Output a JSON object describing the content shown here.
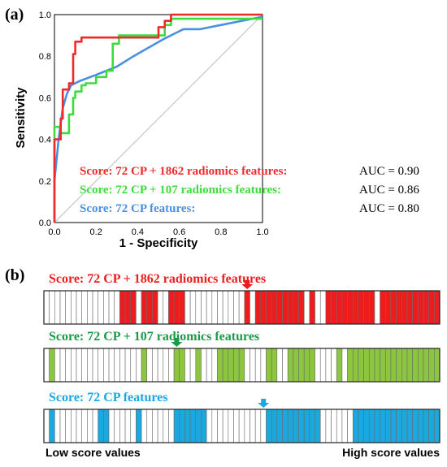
{
  "panel_a_label": "(a)",
  "panel_b_label": "(b)",
  "chart_data": [
    {
      "type": "line",
      "xlabel": "1 - Specificity",
      "ylabel": "Sensitivity",
      "xlim": [
        0,
        1
      ],
      "ylim": [
        0,
        1
      ],
      "xticks": [
        "0.0",
        "0.2",
        "0.4",
        "0.6",
        "0.8",
        "1.0"
      ],
      "yticks": [
        "0.0",
        "0.2",
        "0.4",
        "0.6",
        "0.8",
        "1.0"
      ],
      "diagonal_color": "#bfbfbf",
      "legend_placement": "bottom-right",
      "series": [
        {
          "name": "Score: 72 CP + 1862 radiomics features:",
          "auc_label": "AUC = 0.90",
          "color": "#ee2b2b",
          "x": [
            0,
            0,
            0.03,
            0.03,
            0.04,
            0.04,
            0.07,
            0.07,
            0.09,
            0.09,
            0.1,
            0.1,
            0.13,
            0.13,
            0.5,
            0.5,
            0.53,
            0.53,
            0.56,
            0.56,
            1.0
          ],
          "y": [
            0,
            0.4,
            0.4,
            0.5,
            0.5,
            0.64,
            0.64,
            0.67,
            0.67,
            0.81,
            0.81,
            0.87,
            0.87,
            0.89,
            0.89,
            0.94,
            0.94,
            0.97,
            0.97,
            1.0,
            1.0
          ]
        },
        {
          "name": "Score: 72 CP +   107 radiomics features:",
          "auc_label": "AUC = 0.86",
          "color": "#3ddc3d",
          "x": [
            0,
            0,
            0.03,
            0.03,
            0.07,
            0.07,
            0.09,
            0.09,
            0.1,
            0.1,
            0.13,
            0.13,
            0.15,
            0.15,
            0.2,
            0.2,
            0.25,
            0.25,
            0.28,
            0.28,
            0.31,
            0.31,
            0.53,
            0.53,
            0.56,
            0.56,
            1.0
          ],
          "y": [
            0,
            0.46,
            0.46,
            0.43,
            0.43,
            0.52,
            0.52,
            0.6,
            0.6,
            0.63,
            0.63,
            0.66,
            0.66,
            0.67,
            0.67,
            0.7,
            0.7,
            0.73,
            0.73,
            0.86,
            0.86,
            0.9,
            0.9,
            0.95,
            0.95,
            0.98,
            0.98
          ]
        },
        {
          "name": "Score: 72 CP features:",
          "auc_label": "AUC = 0.80",
          "color": "#4a90e2",
          "x": [
            0,
            0.02,
            0.04,
            0.06,
            0.08,
            0.12,
            0.2,
            0.3,
            0.38,
            0.45,
            0.52,
            0.58,
            0.62,
            0.7,
            0.8,
            0.9,
            1.0
          ],
          "y": [
            0.2,
            0.4,
            0.55,
            0.62,
            0.66,
            0.68,
            0.71,
            0.75,
            0.8,
            0.84,
            0.88,
            0.91,
            0.93,
            0.93,
            0.95,
            0.97,
            0.99
          ]
        }
      ]
    },
    {
      "type": "heatmap",
      "left_label": "Low score values",
      "right_label": "High score values",
      "strips": [
        {
          "title": "Score: 72 CP + 1862 radiomics features",
          "color": "#ee1c1c",
          "arrow_color": "#ee1c1c",
          "arrow_index": 37,
          "cells": [
            0,
            0,
            0,
            0,
            0,
            0,
            0,
            0,
            0,
            0,
            0,
            0,
            0,
            0,
            1,
            1,
            1,
            0,
            1,
            1,
            1,
            0,
            0,
            1,
            1,
            1,
            0,
            0,
            0,
            0,
            0,
            0,
            0,
            0,
            0,
            0,
            0,
            1,
            0,
            1,
            1,
            1,
            1,
            1,
            1,
            1,
            1,
            1,
            0,
            1,
            0,
            0,
            1,
            1,
            1,
            1,
            1,
            1,
            1,
            1,
            1,
            0,
            1,
            1,
            1,
            1,
            1,
            1,
            1,
            1,
            1,
            1,
            1
          ]
        },
        {
          "title": "Score: 72 CP +   107 radiomics features",
          "color": "#8cc63f",
          "arrow_color": "#1a9a4a",
          "arrow_index": 24,
          "cells": [
            0,
            1,
            0,
            0,
            0,
            0,
            0,
            0,
            0,
            0,
            0,
            0,
            0,
            0,
            0,
            0,
            0,
            0,
            1,
            0,
            0,
            0,
            0,
            0,
            1,
            1,
            0,
            0,
            1,
            0,
            0,
            0,
            1,
            1,
            1,
            1,
            1,
            0,
            0,
            0,
            0,
            1,
            1,
            0,
            0,
            1,
            1,
            1,
            1,
            1,
            0,
            0,
            0,
            0,
            1,
            0,
            1,
            1,
            1,
            1,
            1,
            1,
            1,
            1,
            1,
            1,
            1,
            1,
            1,
            1,
            1,
            1,
            1
          ]
        },
        {
          "title": "Score: 72 CP features",
          "color": "#1aa8e0",
          "arrow_color": "#1aa8e0",
          "arrow_index": 40,
          "cells": [
            0,
            1,
            0,
            0,
            0,
            0,
            0,
            0,
            0,
            0,
            1,
            1,
            0,
            0,
            0,
            0,
            0,
            1,
            0,
            0,
            0,
            0,
            0,
            0,
            1,
            1,
            1,
            1,
            1,
            1,
            0,
            0,
            0,
            0,
            0,
            0,
            0,
            0,
            0,
            0,
            0,
            1,
            1,
            1,
            1,
            1,
            1,
            1,
            1,
            1,
            1,
            0,
            0,
            0,
            0,
            0,
            0,
            1,
            1,
            1,
            1,
            1,
            1,
            1,
            1,
            1,
            1,
            1,
            1,
            1,
            1,
            1,
            1
          ]
        }
      ]
    }
  ]
}
